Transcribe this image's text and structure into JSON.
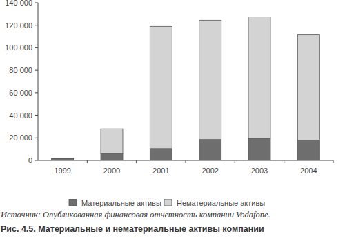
{
  "chart_data": {
    "type": "bar",
    "stacked": true,
    "title": "Рис. 4.5. Материальные и нематериальные активы компании",
    "annotations": [
      "Источник: Опубликованная финансовая отчетность компании Vodafone."
    ],
    "categories": [
      "1999",
      "2000",
      "2001",
      "2002",
      "2003",
      "2004"
    ],
    "series": [
      {
        "name": "Материальные активы",
        "color": "#6e6e6e",
        "values": [
          1800,
          6000,
          10500,
          18500,
          19500,
          18000
        ]
      },
      {
        "name": "Нематериальные активы",
        "color": "#d3d3d3",
        "values": [
          400,
          22000,
          108500,
          106000,
          108000,
          93500
        ]
      }
    ],
    "ylim": [
      0,
      140000
    ],
    "yticks": [
      0,
      {
        "value": 20000,
        "label": "20 000"
      },
      {
        "value": 40000,
        "label": "40 000"
      },
      {
        "value": 60000,
        "label": "60 000"
      },
      {
        "value": 80000,
        "label": "80 000"
      },
      {
        "value": 100000,
        "label": "100 000"
      },
      {
        "value": 120000,
        "label": "120 000"
      },
      {
        "value": 140000,
        "label": "140 000"
      }
    ],
    "grid": false,
    "legend": "bottom"
  }
}
